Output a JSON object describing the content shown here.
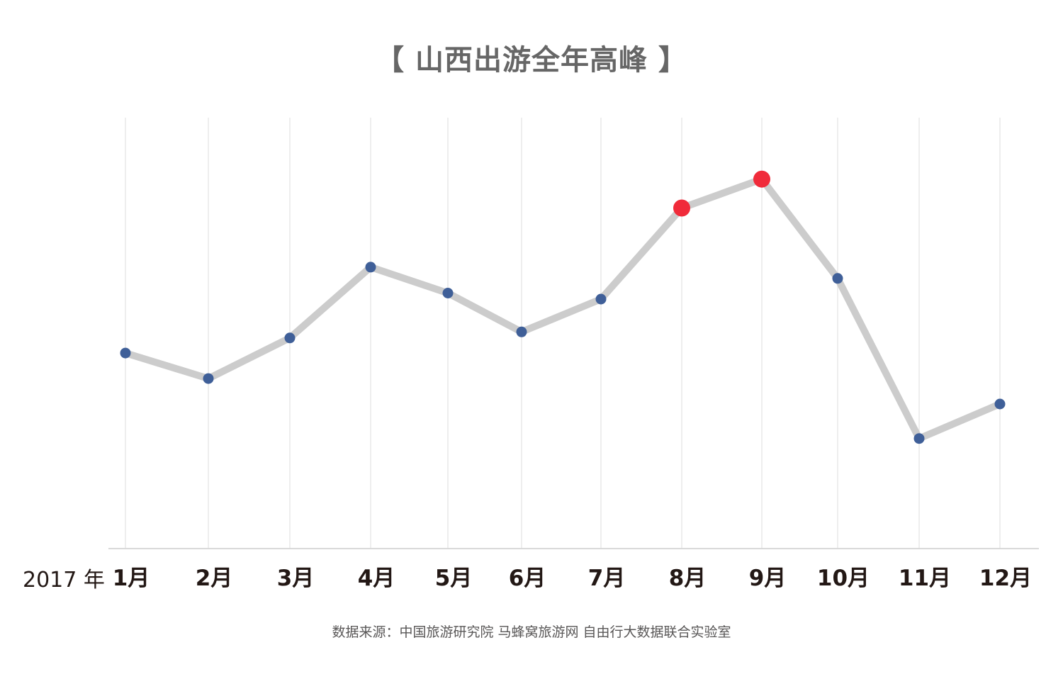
{
  "title": "【 山西出游全年高峰 】",
  "year_label": "2017 年",
  "source": "数据来源：中国旅游研究院 马蜂窝旅游网 自由行大数据联合实验室",
  "colors": {
    "line": "#cccccc",
    "point": "#3f5f98",
    "peak_point": "#f02b3a",
    "gridline": "#e2e2e2",
    "axis": "#d9d9d9",
    "tick_text": "#231815"
  },
  "chart_data": {
    "type": "line",
    "title": "【 山西出游全年高峰 】",
    "xlabel": "",
    "ylabel": "",
    "categories": [
      "1月",
      "2月",
      "3月",
      "4月",
      "5月",
      "6月",
      "7月",
      "8月",
      "9月",
      "10月",
      "11月",
      "12月"
    ],
    "values": [
      45.3,
      39.4,
      48.8,
      65.2,
      59.2,
      50.2,
      57.8,
      78.9,
      85.6,
      62.6,
      25.5,
      33.5
    ],
    "highlight": [
      "8月",
      "9月"
    ],
    "ylim": [
      0,
      100
    ],
    "y_axis_labels_shown": false,
    "grid": true,
    "legend": "none"
  }
}
